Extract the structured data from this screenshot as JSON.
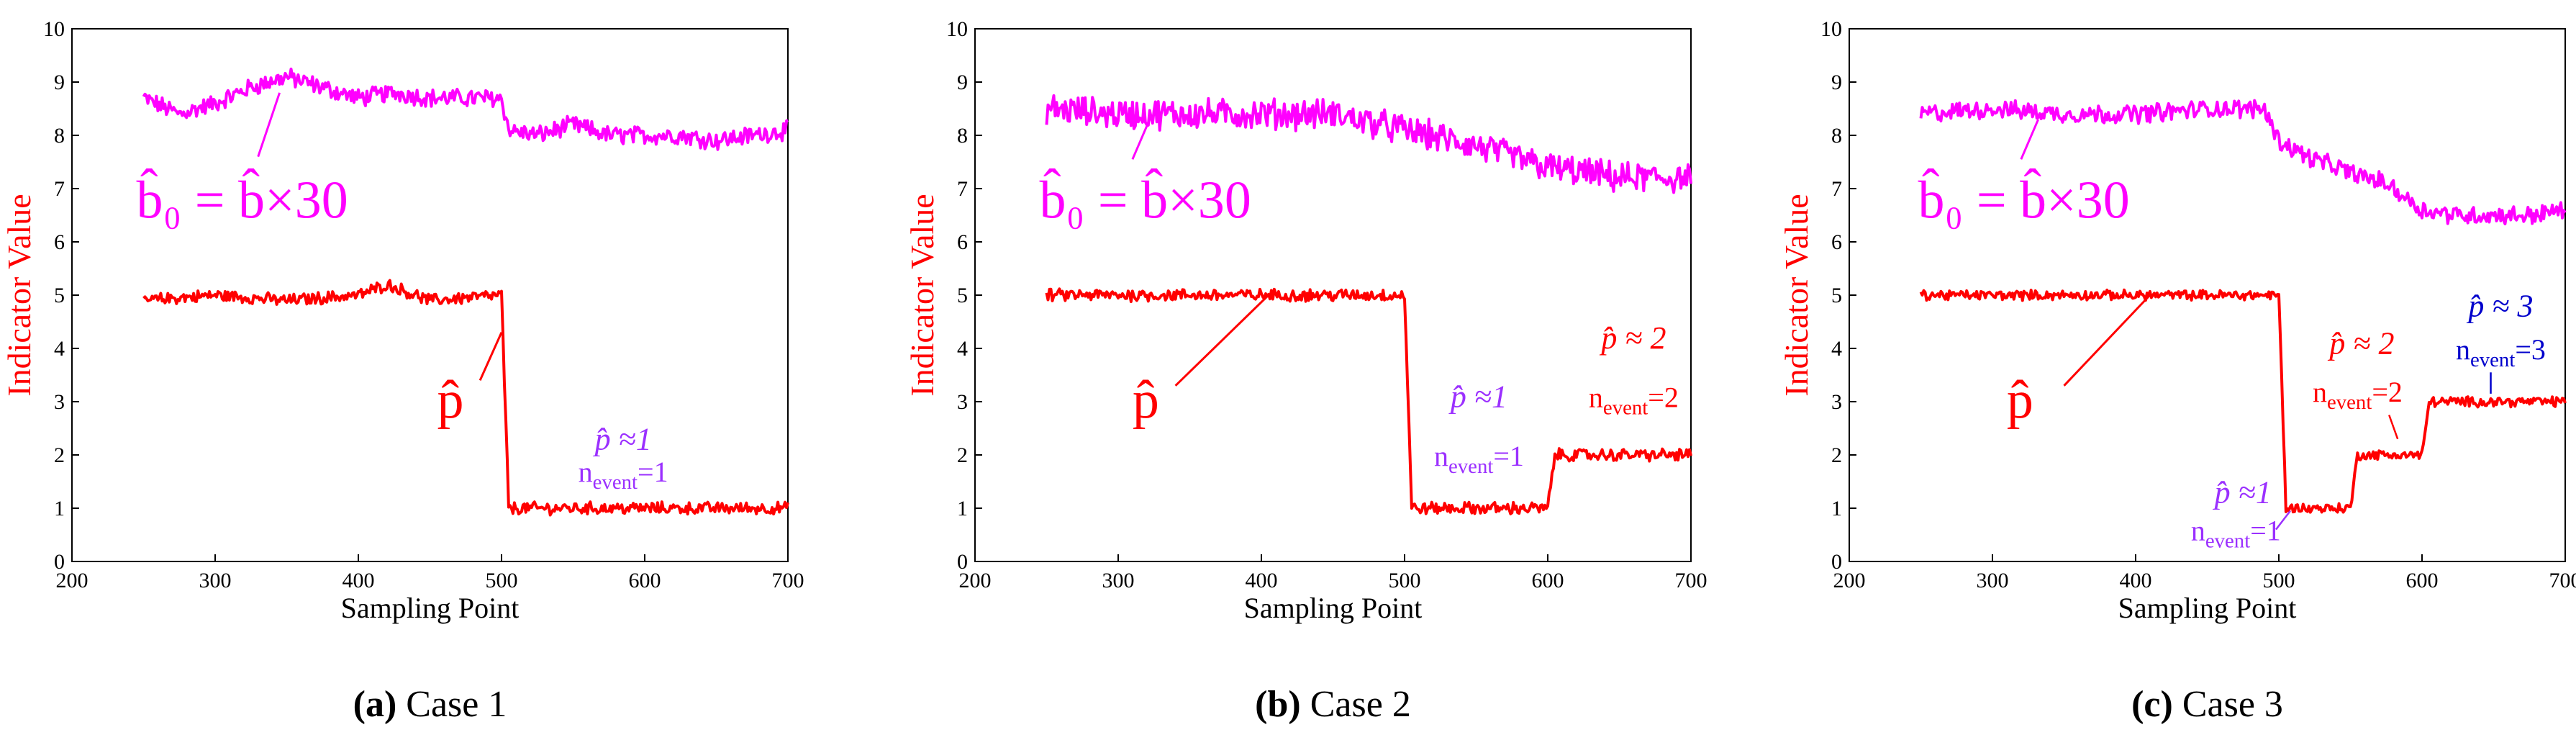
{
  "colors": {
    "magenta": "#ff00ff",
    "red": "#ff0000",
    "purple": "#9b30ff",
    "blue": "#0000cc"
  },
  "chart_data": [
    {
      "type": "line",
      "caption_letter": "(a)",
      "caption_text": "Case 1",
      "xlabel": "Sampling Point",
      "ylabel": "Indicator Value",
      "xlim": [
        200,
        700
      ],
      "ylim": [
        0,
        10
      ],
      "xticks": [
        "200",
        "300",
        "400",
        "500",
        "600",
        "700"
      ],
      "yticks": [
        "0",
        "1",
        "2",
        "3",
        "4",
        "5",
        "6",
        "7",
        "8",
        "9",
        "10"
      ],
      "grid": false,
      "series": [
        {
          "label": "b̂₀ = b̂×30",
          "color": "#ff00ff",
          "x": [
            250,
            275,
            300,
            325,
            350,
            375,
            400,
            425,
            450,
            475,
            500,
            505,
            525,
            550,
            575,
            600,
            625,
            650,
            675,
            700
          ],
          "y": [
            8.7,
            8.4,
            8.6,
            8.9,
            9.1,
            8.9,
            8.7,
            8.8,
            8.7,
            8.7,
            8.7,
            8.1,
            8.0,
            8.2,
            8.0,
            8.0,
            8.0,
            7.9,
            8.0,
            8.1
          ],
          "noise": 0.15
        },
        {
          "label": "p̂",
          "color": "#ff0000",
          "x": [
            250,
            300,
            350,
            400,
            420,
            450,
            500,
            505,
            550,
            600,
            650,
            700
          ],
          "y": [
            4.9,
            5.0,
            4.9,
            5.0,
            5.2,
            4.9,
            5.0,
            1.0,
            1.0,
            1.0,
            1.0,
            1.0
          ],
          "noise": 0.1
        }
      ],
      "annotations": [
        {
          "text": "p̂ ≈1",
          "x": 585,
          "y": 2.1,
          "color": "#9b30ff"
        },
        {
          "text": "n_event=1",
          "x": 585,
          "y": 1.5,
          "color": "#9b30ff"
        }
      ]
    },
    {
      "type": "line",
      "caption_letter": "(b)",
      "caption_text": "Case 2",
      "xlabel": "Sampling Point",
      "ylabel": "Indicator Value",
      "xlim": [
        200,
        700
      ],
      "ylim": [
        0,
        10
      ],
      "xticks": [
        "200",
        "300",
        "400",
        "500",
        "600",
        "700"
      ],
      "yticks": [
        "0",
        "1",
        "2",
        "3",
        "4",
        "5",
        "6",
        "7",
        "8",
        "9",
        "10"
      ],
      "grid": false,
      "series": [
        {
          "label": "b̂₀ = b̂×30",
          "color": "#ff00ff",
          "x": [
            250,
            300,
            350,
            400,
            450,
            500,
            550,
            600,
            650,
            700
          ],
          "y": [
            8.5,
            8.4,
            8.4,
            8.4,
            8.4,
            8.1,
            7.8,
            7.4,
            7.2,
            7.2
          ],
          "noise": 0.25
        },
        {
          "label": "p̂",
          "color": "#ff0000",
          "x": [
            250,
            300,
            350,
            400,
            450,
            500,
            505,
            550,
            600,
            605,
            650,
            700
          ],
          "y": [
            5.0,
            5.0,
            5.0,
            5.0,
            5.0,
            5.0,
            1.0,
            1.0,
            1.0,
            2.0,
            2.0,
            2.0
          ],
          "noise": 0.1
        }
      ],
      "annotations": [
        {
          "text": "p̂ ≈1",
          "x": 552,
          "y": 2.9,
          "color": "#9b30ff"
        },
        {
          "text": "n_event=1",
          "x": 552,
          "y": 1.8,
          "color": "#9b30ff"
        },
        {
          "text": "p̂ ≈ 2",
          "x": 660,
          "y": 4.0,
          "color": "#ff0000"
        },
        {
          "text": "n_event=2",
          "x": 660,
          "y": 2.9,
          "color": "#ff0000"
        }
      ]
    },
    {
      "type": "line",
      "caption_letter": "(c)",
      "caption_text": "Case 3",
      "xlabel": "Sampling Point",
      "ylabel": "Indicator Value",
      "xlim": [
        200,
        700
      ],
      "ylim": [
        0,
        10
      ],
      "xticks": [
        "200",
        "300",
        "400",
        "500",
        "600",
        "700"
      ],
      "yticks": [
        "0",
        "1",
        "2",
        "3",
        "4",
        "5",
        "6",
        "7",
        "8",
        "9",
        "10"
      ],
      "grid": false,
      "series": [
        {
          "label": "b̂₀ = b̂×30",
          "color": "#ff00ff",
          "x": [
            250,
            300,
            350,
            400,
            450,
            490,
            500,
            520,
            550,
            575,
            600,
            625,
            650,
            675,
            700
          ],
          "y": [
            8.4,
            8.5,
            8.4,
            8.4,
            8.5,
            8.5,
            7.9,
            7.6,
            7.3,
            7.1,
            6.6,
            6.5,
            6.5,
            6.5,
            6.6
          ],
          "noise": 0.15
        },
        {
          "label": "p̂",
          "color": "#ff0000",
          "x": [
            250,
            300,
            350,
            400,
            450,
            500,
            505,
            550,
            555,
            600,
            605,
            650,
            700
          ],
          "y": [
            5.0,
            5.0,
            5.0,
            5.0,
            5.0,
            5.0,
            1.0,
            1.0,
            2.0,
            2.0,
            3.0,
            3.0,
            3.0
          ],
          "noise": 0.08
        }
      ],
      "annotations": [
        {
          "text": "p̂ ≈1",
          "x": 475,
          "y": 1.1,
          "color": "#9b30ff"
        },
        {
          "text": "n_event=1",
          "x": 470,
          "y": 0.4,
          "color": "#9b30ff"
        },
        {
          "text": "p̂ ≈ 2",
          "x": 558,
          "y": 3.9,
          "color": "#ff0000"
        },
        {
          "text": "n_event=2",
          "x": 555,
          "y": 3.0,
          "color": "#ff0000"
        },
        {
          "text": "p̂ ≈ 3",
          "x": 655,
          "y": 4.6,
          "color": "#0000cc"
        },
        {
          "text": "n_event=3",
          "x": 655,
          "y": 3.8,
          "color": "#0000cc"
        }
      ]
    }
  ]
}
